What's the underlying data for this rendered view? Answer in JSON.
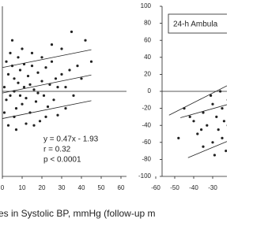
{
  "chart_data": [
    {
      "type": "scatter",
      "x": [
        1,
        2,
        3,
        4,
        5,
        6,
        7,
        8,
        9,
        10,
        2,
        4,
        6,
        8,
        11,
        12,
        13,
        14,
        15,
        16,
        17,
        18,
        19,
        20,
        21,
        22,
        23,
        24,
        25,
        26,
        27,
        28,
        30,
        32,
        34,
        36,
        38,
        40,
        25,
        30,
        35,
        32,
        3,
        7,
        12,
        5,
        10,
        15,
        1,
        9,
        14,
        18,
        20,
        22,
        11,
        6,
        16,
        28,
        45,
        42
      ],
      "values": [
        5,
        -10,
        20,
        -5,
        30,
        0,
        -20,
        10,
        25,
        -15,
        35,
        45,
        -30,
        40,
        5,
        -8,
        18,
        -25,
        30,
        2,
        -12,
        22,
        -35,
        12,
        -5,
        28,
        -18,
        8,
        35,
        -10,
        15,
        -28,
        20,
        5,
        25,
        -5,
        30,
        15,
        55,
        50,
        70,
        -20,
        -40,
        -45,
        -38,
        60,
        50,
        45,
        -25,
        -5,
        8,
        -2,
        40,
        -30,
        32,
        15,
        -40,
        5,
        35,
        60
      ],
      "color": "#222222",
      "lines": [
        {
          "x": [
            0,
            45
          ],
          "values": [
            28,
            49
          ]
        },
        {
          "x": [
            0,
            45
          ],
          "values": [
            -1.93,
            19.22
          ]
        },
        {
          "x": [
            0,
            45
          ],
          "values": [
            -32,
            -11
          ]
        }
      ],
      "annotations": [
        "y = 0.47x - 1.93",
        "r = 0.32",
        "p < 0.0001"
      ],
      "xlabel": "es in Systolic BP, mmHg (follow-up m",
      "xlim": [
        0,
        60
      ],
      "xticks": [
        0,
        10,
        20,
        30,
        40,
        50,
        60
      ],
      "ylim": [
        -100,
        100
      ]
    },
    {
      "type": "scatter",
      "title": "24-h Ambula",
      "x": [
        -45,
        -40,
        -38,
        -35,
        -33,
        -30,
        -30,
        -28,
        -27,
        -25,
        -25,
        -24,
        -23,
        -22,
        -22,
        -21,
        -20,
        -20,
        -35,
        -31,
        -26,
        -29,
        -48,
        -42,
        -36
      ],
      "values": [
        -20,
        -35,
        -50,
        -25,
        -40,
        -15,
        -60,
        -30,
        -45,
        -20,
        -55,
        -35,
        -70,
        -10,
        -40,
        -25,
        -50,
        -30,
        -65,
        -5,
        0,
        -75,
        -55,
        -30,
        -45
      ],
      "color": "#222222",
      "lines": [
        {
          "x": [
            -53,
            -15
          ],
          "values": [
            -28,
            15
          ]
        },
        {
          "x": [
            -47,
            -15
          ],
          "values": [
            -31,
            -11
          ]
        },
        {
          "x": [
            -43,
            -15
          ],
          "values": [
            -78,
            -52
          ]
        }
      ],
      "xlim": [
        -60,
        -20
      ],
      "xticks": [
        -60,
        -50,
        -40,
        -30,
        -20
      ],
      "ylim": [
        -100,
        100
      ],
      "yticks": [
        100,
        80,
        60,
        40,
        20,
        0,
        -20,
        -40,
        -60,
        -80,
        -100
      ]
    }
  ]
}
